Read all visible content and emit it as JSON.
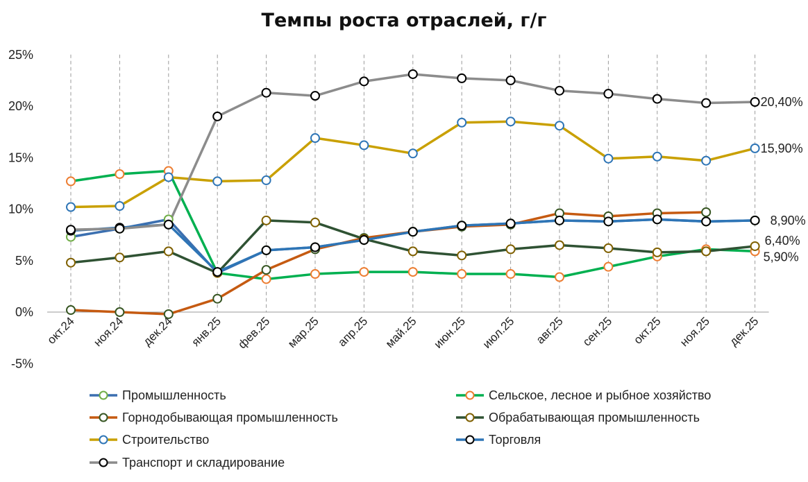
{
  "chart_data": {
    "type": "line",
    "title": "Темпы роста отраслей, г/г",
    "categories": [
      "окт.24",
      "ноя.24",
      "дек.24",
      "янв.25",
      "фев.25",
      "мар.25",
      "апр.25",
      "май.25",
      "июн.25",
      "июл.25",
      "авг.25",
      "сен.25",
      "окт.25",
      "ноя.25",
      "дек.25"
    ],
    "ylim": [
      -5,
      25
    ],
    "yticks": [
      "-5%",
      "0%",
      "5%",
      "10%",
      "15%",
      "20%",
      "25%"
    ],
    "grid": "vertical-dashed",
    "legend_position": "bottom",
    "series": [
      {
        "name": "Промышленность",
        "color": "#3b6fb0",
        "marker": "#70ad47",
        "values": [
          7.3,
          8.1,
          9.0,
          3.8,
          6.0,
          6.3,
          7.0,
          7.8,
          8.4,
          8.6,
          8.9,
          8.8,
          9.0,
          8.8,
          8.9
        ]
      },
      {
        "name": "Сельское, лесное и рыбное хозяйство",
        "color": "#00b050",
        "marker": "#ed7d31",
        "values": [
          12.7,
          13.4,
          13.7,
          3.8,
          3.2,
          3.7,
          3.9,
          3.9,
          3.7,
          3.7,
          3.4,
          4.4,
          5.4,
          6.1,
          5.9
        ]
      },
      {
        "name": "Горнодобывающая промышленность",
        "color": "#c55a11",
        "marker": "#375623",
        "values": [
          0.2,
          0.0,
          -0.2,
          1.3,
          4.1,
          6.1,
          7.2,
          7.8,
          8.3,
          8.5,
          9.6,
          9.3,
          9.6,
          9.7,
          null
        ]
      },
      {
        "name": "Обрабатывающая промышленность",
        "color": "#2f5233",
        "marker": "#7f6000",
        "values": [
          4.8,
          5.3,
          5.9,
          3.8,
          8.9,
          8.7,
          7.1,
          5.9,
          5.5,
          6.1,
          6.5,
          6.2,
          5.8,
          5.9,
          6.4
        ]
      },
      {
        "name": "Строительство",
        "color": "#c9a000",
        "marker": "#2e75b6",
        "values": [
          10.2,
          10.3,
          13.1,
          12.7,
          12.8,
          16.9,
          16.2,
          15.4,
          18.4,
          18.5,
          18.1,
          14.9,
          15.1,
          14.7,
          15.9
        ]
      },
      {
        "name": "Торговля",
        "color": "#2e75b6",
        "marker": "#000000",
        "values": [
          7.9,
          8.2,
          8.5,
          3.9,
          6.0,
          6.3,
          7.0,
          7.8,
          8.4,
          8.6,
          8.9,
          8.8,
          9.0,
          8.8,
          8.9
        ]
      },
      {
        "name": "Транспорт и складирование",
        "color": "#8c8c8c",
        "marker": "#000000",
        "values": [
          8.0,
          8.1,
          8.5,
          19.0,
          21.3,
          21.0,
          22.4,
          23.1,
          22.7,
          22.5,
          21.5,
          21.2,
          20.7,
          20.3,
          20.4
        ]
      }
    ],
    "end_labels": [
      "20,40%",
      "15,90%",
      "8,90%",
      "6,40%",
      "5,90%"
    ]
  }
}
